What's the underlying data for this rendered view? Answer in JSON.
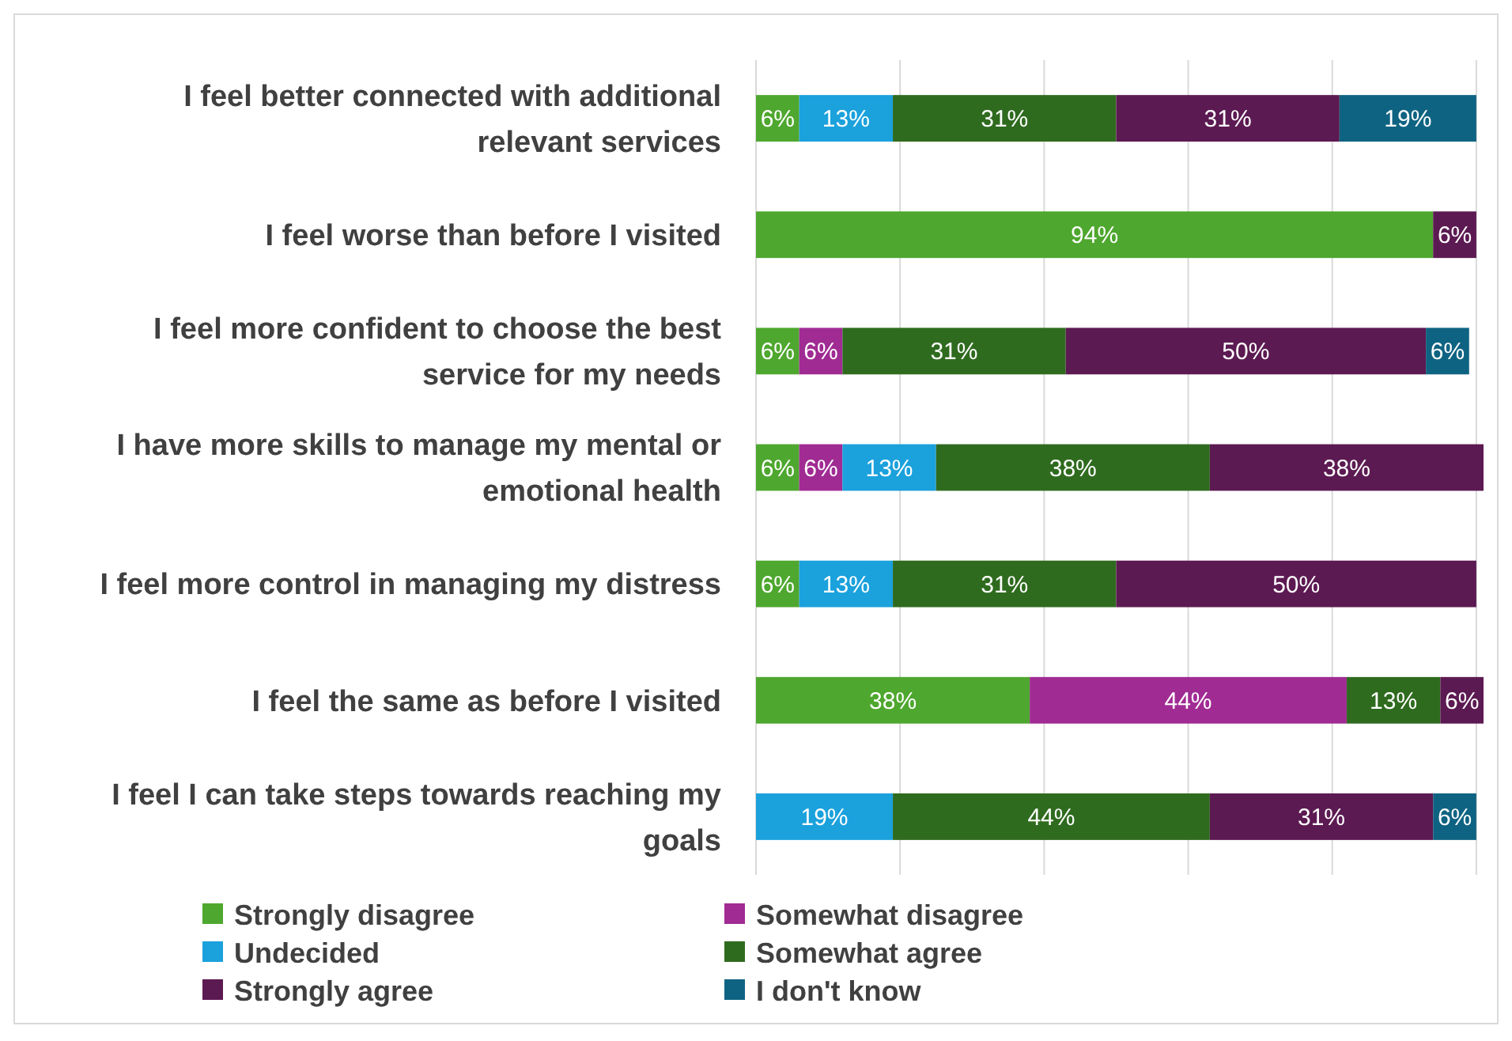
{
  "chart_data": {
    "type": "bar",
    "orientation": "horizontal",
    "stacked": true,
    "categories": [
      "I feel better connected with additional relevant services",
      "I feel worse than before I visited",
      "I feel more confident to choose the best service for my needs",
      "I have more skills to manage my mental or emotional health",
      "I feel more control in managing my distress",
      "I feel the same as before I visited",
      "I feel I can take steps towards reaching my goals"
    ],
    "series": [
      {
        "name": "Strongly disagree",
        "color": "#4ea72e",
        "values": [
          6,
          94,
          6,
          6,
          6,
          38,
          null
        ],
        "value_labels": [
          "6%",
          "94%",
          "6%",
          "6%",
          "6%",
          "38%",
          null
        ]
      },
      {
        "name": "Somewhat disagree",
        "color": "#a02b93",
        "values": [
          null,
          null,
          6,
          6,
          null,
          44,
          null
        ],
        "value_labels": [
          null,
          null,
          "6%",
          "6%",
          null,
          "44%",
          null
        ]
      },
      {
        "name": "Undecided",
        "color": "#1ba1dc",
        "values": [
          13,
          null,
          null,
          13,
          13,
          null,
          19
        ],
        "value_labels": [
          "13%",
          null,
          null,
          "13%",
          "13%",
          null,
          "19%"
        ]
      },
      {
        "name": "Somewhat agree",
        "color": "#2f6b1f",
        "values": [
          31,
          null,
          31,
          38,
          31,
          13,
          44
        ],
        "value_labels": [
          "31%",
          null,
          "31%",
          "38%",
          "31%",
          "13%",
          "44%"
        ]
      },
      {
        "name": "Strongly agree",
        "color": "#5c1a52",
        "values": [
          31,
          6,
          50,
          38,
          50,
          6,
          31
        ],
        "value_labels": [
          "31%",
          "6%",
          "50%",
          "38%",
          "50%",
          "6%",
          "31%"
        ]
      },
      {
        "name": "I don't know",
        "color": "#0f6382",
        "values": [
          19,
          null,
          6,
          null,
          null,
          null,
          6
        ],
        "value_labels": [
          "19%",
          null,
          "6%",
          null,
          null,
          null,
          "6%"
        ]
      }
    ],
    "xticks": [
      {
        "value": 0,
        "label": null
      },
      {
        "value": 20,
        "label": null
      },
      {
        "value": 40,
        "label": null
      },
      {
        "value": 60,
        "label": null
      },
      {
        "value": 80,
        "label": null
      },
      {
        "value": 100,
        "label": null
      }
    ],
    "tick_labels": "y",
    "grid": "x",
    "legend": "bottom"
  }
}
